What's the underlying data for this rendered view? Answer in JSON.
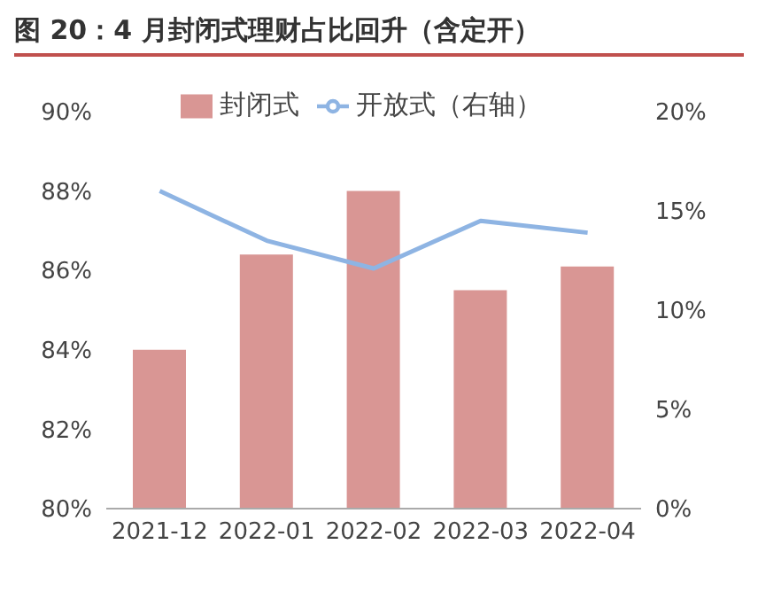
{
  "chart_data": {
    "type": "bar",
    "title": "图 20：4 月封闭式理财占比回升（含定开）",
    "categories": [
      "2021-12",
      "2022-01",
      "2022-02",
      "2022-03",
      "2022-04"
    ],
    "series": [
      {
        "name": "封闭式",
        "color": "#d99694",
        "values": [
          84.0,
          86.4,
          88.0,
          85.5,
          86.1
        ]
      },
      {
        "name": "开放式（右轴）",
        "type": "line",
        "axis": "y2",
        "color": "#8eb4e3",
        "values": [
          16.0,
          13.5,
          12.1,
          14.5,
          13.9
        ]
      }
    ],
    "ylim": [
      80,
      90
    ],
    "yticks": [
      {
        "value": 80,
        "label": "80%"
      },
      {
        "value": 82,
        "label": "82%"
      },
      {
        "value": 84,
        "label": "84%"
      },
      {
        "value": 86,
        "label": "86%"
      },
      {
        "value": 88,
        "label": "88%"
      },
      {
        "value": 90,
        "label": "90%"
      }
    ],
    "y2lim": [
      0,
      20
    ],
    "y2ticks": [
      {
        "value": 0,
        "label": "0%"
      },
      {
        "value": 5,
        "label": "5%"
      },
      {
        "value": 10,
        "label": "10%"
      },
      {
        "value": 15,
        "label": "15%"
      },
      {
        "value": 20,
        "label": "20%"
      }
    ],
    "grid": false,
    "legend": "top",
    "marker": "none",
    "line_style": "solid"
  }
}
